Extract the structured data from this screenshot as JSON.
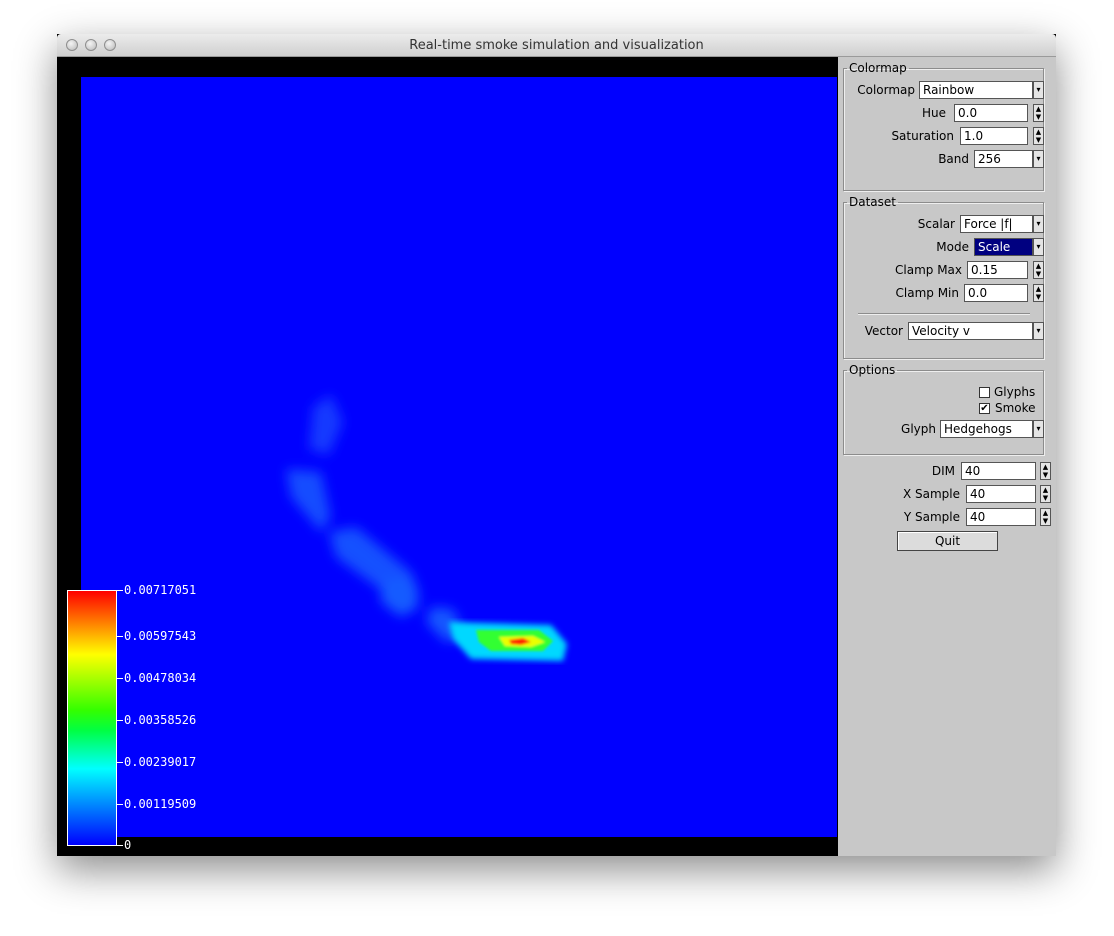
{
  "window": {
    "title": "Real-time smoke simulation and visualization"
  },
  "legend": {
    "labels": [
      "0.00717051",
      "0.00597543",
      "0.00478034",
      "0.00358526",
      "0.00239017",
      "0.00119509",
      "0"
    ]
  },
  "colormap_group": {
    "title": "Colormap",
    "colormap": {
      "label": "Colormap",
      "value": "Rainbow"
    },
    "hue": {
      "label": "Hue",
      "value": "0.0"
    },
    "saturation": {
      "label": "Saturation",
      "value": "1.0"
    },
    "band": {
      "label": "Band",
      "value": "256"
    }
  },
  "dataset_group": {
    "title": "Dataset",
    "scalar": {
      "label": "Scalar",
      "value": "Force |f|"
    },
    "mode": {
      "label": "Mode",
      "value": "Scale"
    },
    "clamp_max": {
      "label": "Clamp Max",
      "value": "0.15"
    },
    "clamp_min": {
      "label": "Clamp Min",
      "value": "0.0"
    },
    "vector": {
      "label": "Vector",
      "value": "Velocity v"
    }
  },
  "options_group": {
    "title": "Options",
    "glyphs": {
      "label": "Glyphs",
      "checked": false
    },
    "smoke": {
      "label": "Smoke",
      "checked": true
    },
    "glyph": {
      "label": "Glyph",
      "value": "Hedgehogs"
    }
  },
  "sampling": {
    "dim": {
      "label": "DIM",
      "value": "40"
    },
    "x_sample": {
      "label": "X Sample",
      "value": "40"
    },
    "y_sample": {
      "label": "Y Sample",
      "value": "40"
    }
  },
  "quit_label": "Quit",
  "colors": {
    "field_background": "#0000ff",
    "panel": "#c8c8c8",
    "selected": "#000080"
  }
}
